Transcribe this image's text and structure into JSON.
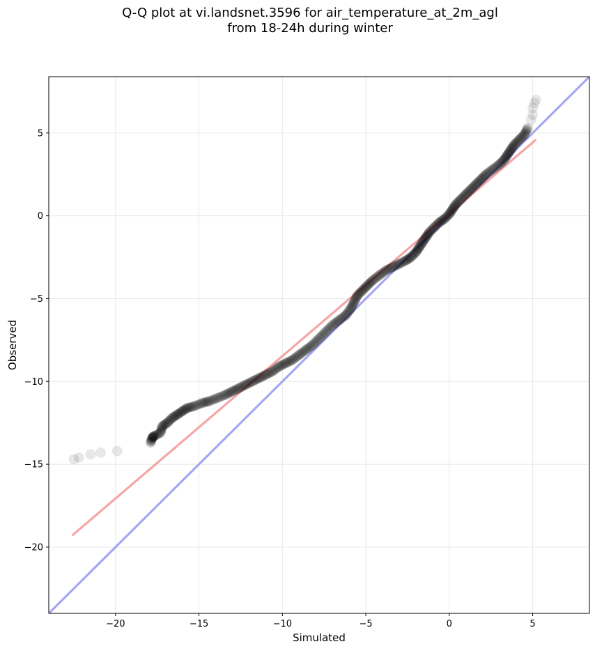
{
  "chart_data": {
    "type": "scatter",
    "title_line1": "Q-Q plot at vi.landsnet.3596 for air_temperature_at_2m_agl",
    "title_line2": "from 18-24h during winter",
    "xlabel": "Simulated",
    "ylabel": "Observed",
    "xlim": [
      -24,
      8.4
    ],
    "ylim": [
      -24,
      8.4
    ],
    "grid": true,
    "xticks": [
      -20,
      -15,
      -10,
      -5,
      0,
      5
    ],
    "yticks": [
      -20,
      -15,
      -10,
      -5,
      0,
      5
    ],
    "xtick_labels": [
      "−20",
      "−15",
      "−10",
      "−5",
      "0",
      "5"
    ],
    "ytick_labels": [
      "−20",
      "−15",
      "−10",
      "−5",
      "0",
      "5"
    ],
    "identity_line": {
      "color": "#a6a6f3"
    },
    "fit_line": {
      "color": "#f5a6a6",
      "x": [
        -22.6,
        5.2
      ],
      "y": [
        -19.3,
        4.6
      ]
    },
    "marker_color": "#000000",
    "quantile_points": [
      [
        -22.5,
        -14.7
      ],
      [
        -22.2,
        -14.6
      ],
      [
        -21.5,
        -14.4
      ],
      [
        -20.9,
        -14.3
      ],
      [
        -19.9,
        -14.2
      ],
      [
        -17.9,
        -13.7
      ],
      [
        -17.8,
        -13.4
      ],
      [
        -17.7,
        -13.3
      ],
      [
        -17.3,
        -13.1
      ],
      [
        -17.2,
        -12.7
      ],
      [
        -16.9,
        -12.5
      ],
      [
        -16.6,
        -12.2
      ],
      [
        -16.3,
        -12.0
      ],
      [
        -16.0,
        -11.8
      ],
      [
        -15.7,
        -11.6
      ],
      [
        -15.3,
        -11.5
      ],
      [
        -14.8,
        -11.3
      ],
      [
        -14.4,
        -11.2
      ],
      [
        -13.9,
        -11.0
      ],
      [
        -13.4,
        -10.8
      ],
      [
        -13.0,
        -10.6
      ],
      [
        -12.6,
        -10.4
      ],
      [
        -12.2,
        -10.2
      ],
      [
        -11.8,
        -10.0
      ],
      [
        -11.4,
        -9.8
      ],
      [
        -11.0,
        -9.6
      ],
      [
        -10.6,
        -9.4
      ],
      [
        -10.2,
        -9.1
      ],
      [
        -9.8,
        -8.9
      ],
      [
        -9.4,
        -8.7
      ],
      [
        -9.0,
        -8.4
      ],
      [
        -8.6,
        -8.1
      ],
      [
        -8.2,
        -7.8
      ],
      [
        -7.8,
        -7.4
      ],
      [
        -7.4,
        -7.0
      ],
      [
        -7.0,
        -6.6
      ],
      [
        -6.6,
        -6.3
      ],
      [
        -6.2,
        -6.0
      ],
      [
        -5.9,
        -5.6
      ],
      [
        -5.7,
        -5.2
      ],
      [
        -5.5,
        -4.8
      ],
      [
        -5.2,
        -4.5
      ],
      [
        -4.9,
        -4.2
      ],
      [
        -4.6,
        -3.9
      ],
      [
        -4.2,
        -3.6
      ],
      [
        -3.8,
        -3.3
      ],
      [
        -3.4,
        -3.1
      ],
      [
        -3.0,
        -2.9
      ],
      [
        -2.6,
        -2.7
      ],
      [
        -2.3,
        -2.5
      ],
      [
        -2.0,
        -2.2
      ],
      [
        -1.8,
        -1.9
      ],
      [
        -1.6,
        -1.6
      ],
      [
        -1.4,
        -1.3
      ],
      [
        -1.2,
        -1.0
      ],
      [
        -0.9,
        -0.7
      ],
      [
        -0.6,
        -0.4
      ],
      [
        -0.3,
        -0.2
      ],
      [
        0.0,
        0.1
      ],
      [
        0.2,
        0.4
      ],
      [
        0.4,
        0.7
      ],
      [
        0.7,
        1.0
      ],
      [
        1.0,
        1.3
      ],
      [
        1.3,
        1.6
      ],
      [
        1.6,
        1.9
      ],
      [
        1.9,
        2.2
      ],
      [
        2.2,
        2.5
      ],
      [
        2.6,
        2.8
      ],
      [
        3.0,
        3.1
      ],
      [
        3.3,
        3.4
      ],
      [
        3.5,
        3.7
      ],
      [
        3.7,
        4.0
      ],
      [
        3.9,
        4.3
      ],
      [
        4.2,
        4.6
      ],
      [
        4.5,
        4.9
      ],
      [
        4.7,
        5.3
      ],
      [
        4.9,
        5.8
      ],
      [
        5.0,
        6.1
      ],
      [
        5.0,
        6.5
      ],
      [
        5.1,
        6.8
      ],
      [
        5.2,
        7.0
      ]
    ]
  }
}
